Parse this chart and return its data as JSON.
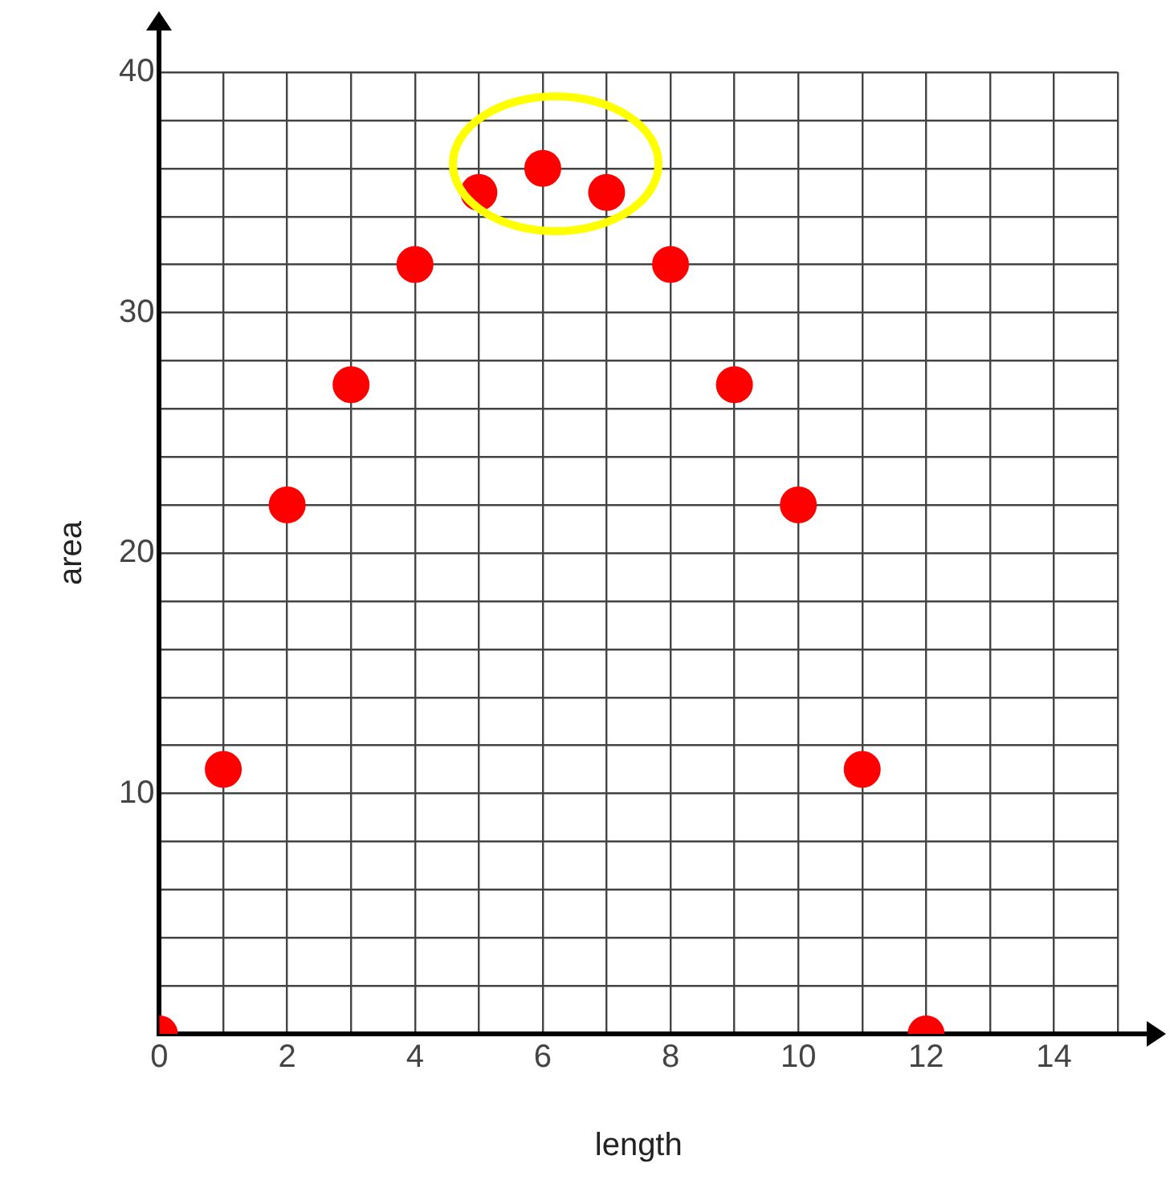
{
  "chart_data": {
    "type": "scatter",
    "xlabel": "length",
    "ylabel": "area",
    "x": [
      0,
      1,
      2,
      3,
      4,
      5,
      6,
      7,
      8,
      9,
      10,
      11,
      12
    ],
    "values": [
      0,
      11,
      22,
      27,
      32,
      35,
      36,
      35,
      32,
      27,
      22,
      11,
      0
    ],
    "color": "#ff0000",
    "marker": "circle",
    "grid": true,
    "legend": false,
    "xlim": [
      0,
      15
    ],
    "ylim": [
      0,
      40
    ],
    "xticks": [
      0,
      {
        "value": 1,
        "label": null
      },
      2,
      {
        "value": 3,
        "label": null
      },
      4,
      {
        "value": 5,
        "label": null
      },
      6,
      {
        "value": 7,
        "label": null
      },
      8,
      {
        "value": 9,
        "label": null
      },
      10,
      {
        "value": 11,
        "label": null
      },
      12,
      {
        "value": 13,
        "label": null
      },
      14,
      {
        "value": 15,
        "label": null
      }
    ],
    "yticks": [
      {
        "value": 0,
        "label": null
      },
      {
        "value": 2,
        "label": null
      },
      {
        "value": 4,
        "label": null
      },
      {
        "value": 6,
        "label": null
      },
      {
        "value": 8,
        "label": null
      },
      10,
      {
        "value": 12,
        "label": null
      },
      {
        "value": 14,
        "label": null
      },
      {
        "value": 16,
        "label": null
      },
      {
        "value": 18,
        "label": null
      },
      20,
      {
        "value": 22,
        "label": null
      },
      {
        "value": 24,
        "label": null
      },
      {
        "value": 26,
        "label": null
      },
      {
        "value": 28,
        "label": null
      },
      30,
      {
        "value": 32,
        "label": null
      },
      {
        "value": 34,
        "label": null
      },
      {
        "value": 36,
        "label": null
      },
      {
        "value": 38,
        "label": null
      },
      40
    ]
  }
}
